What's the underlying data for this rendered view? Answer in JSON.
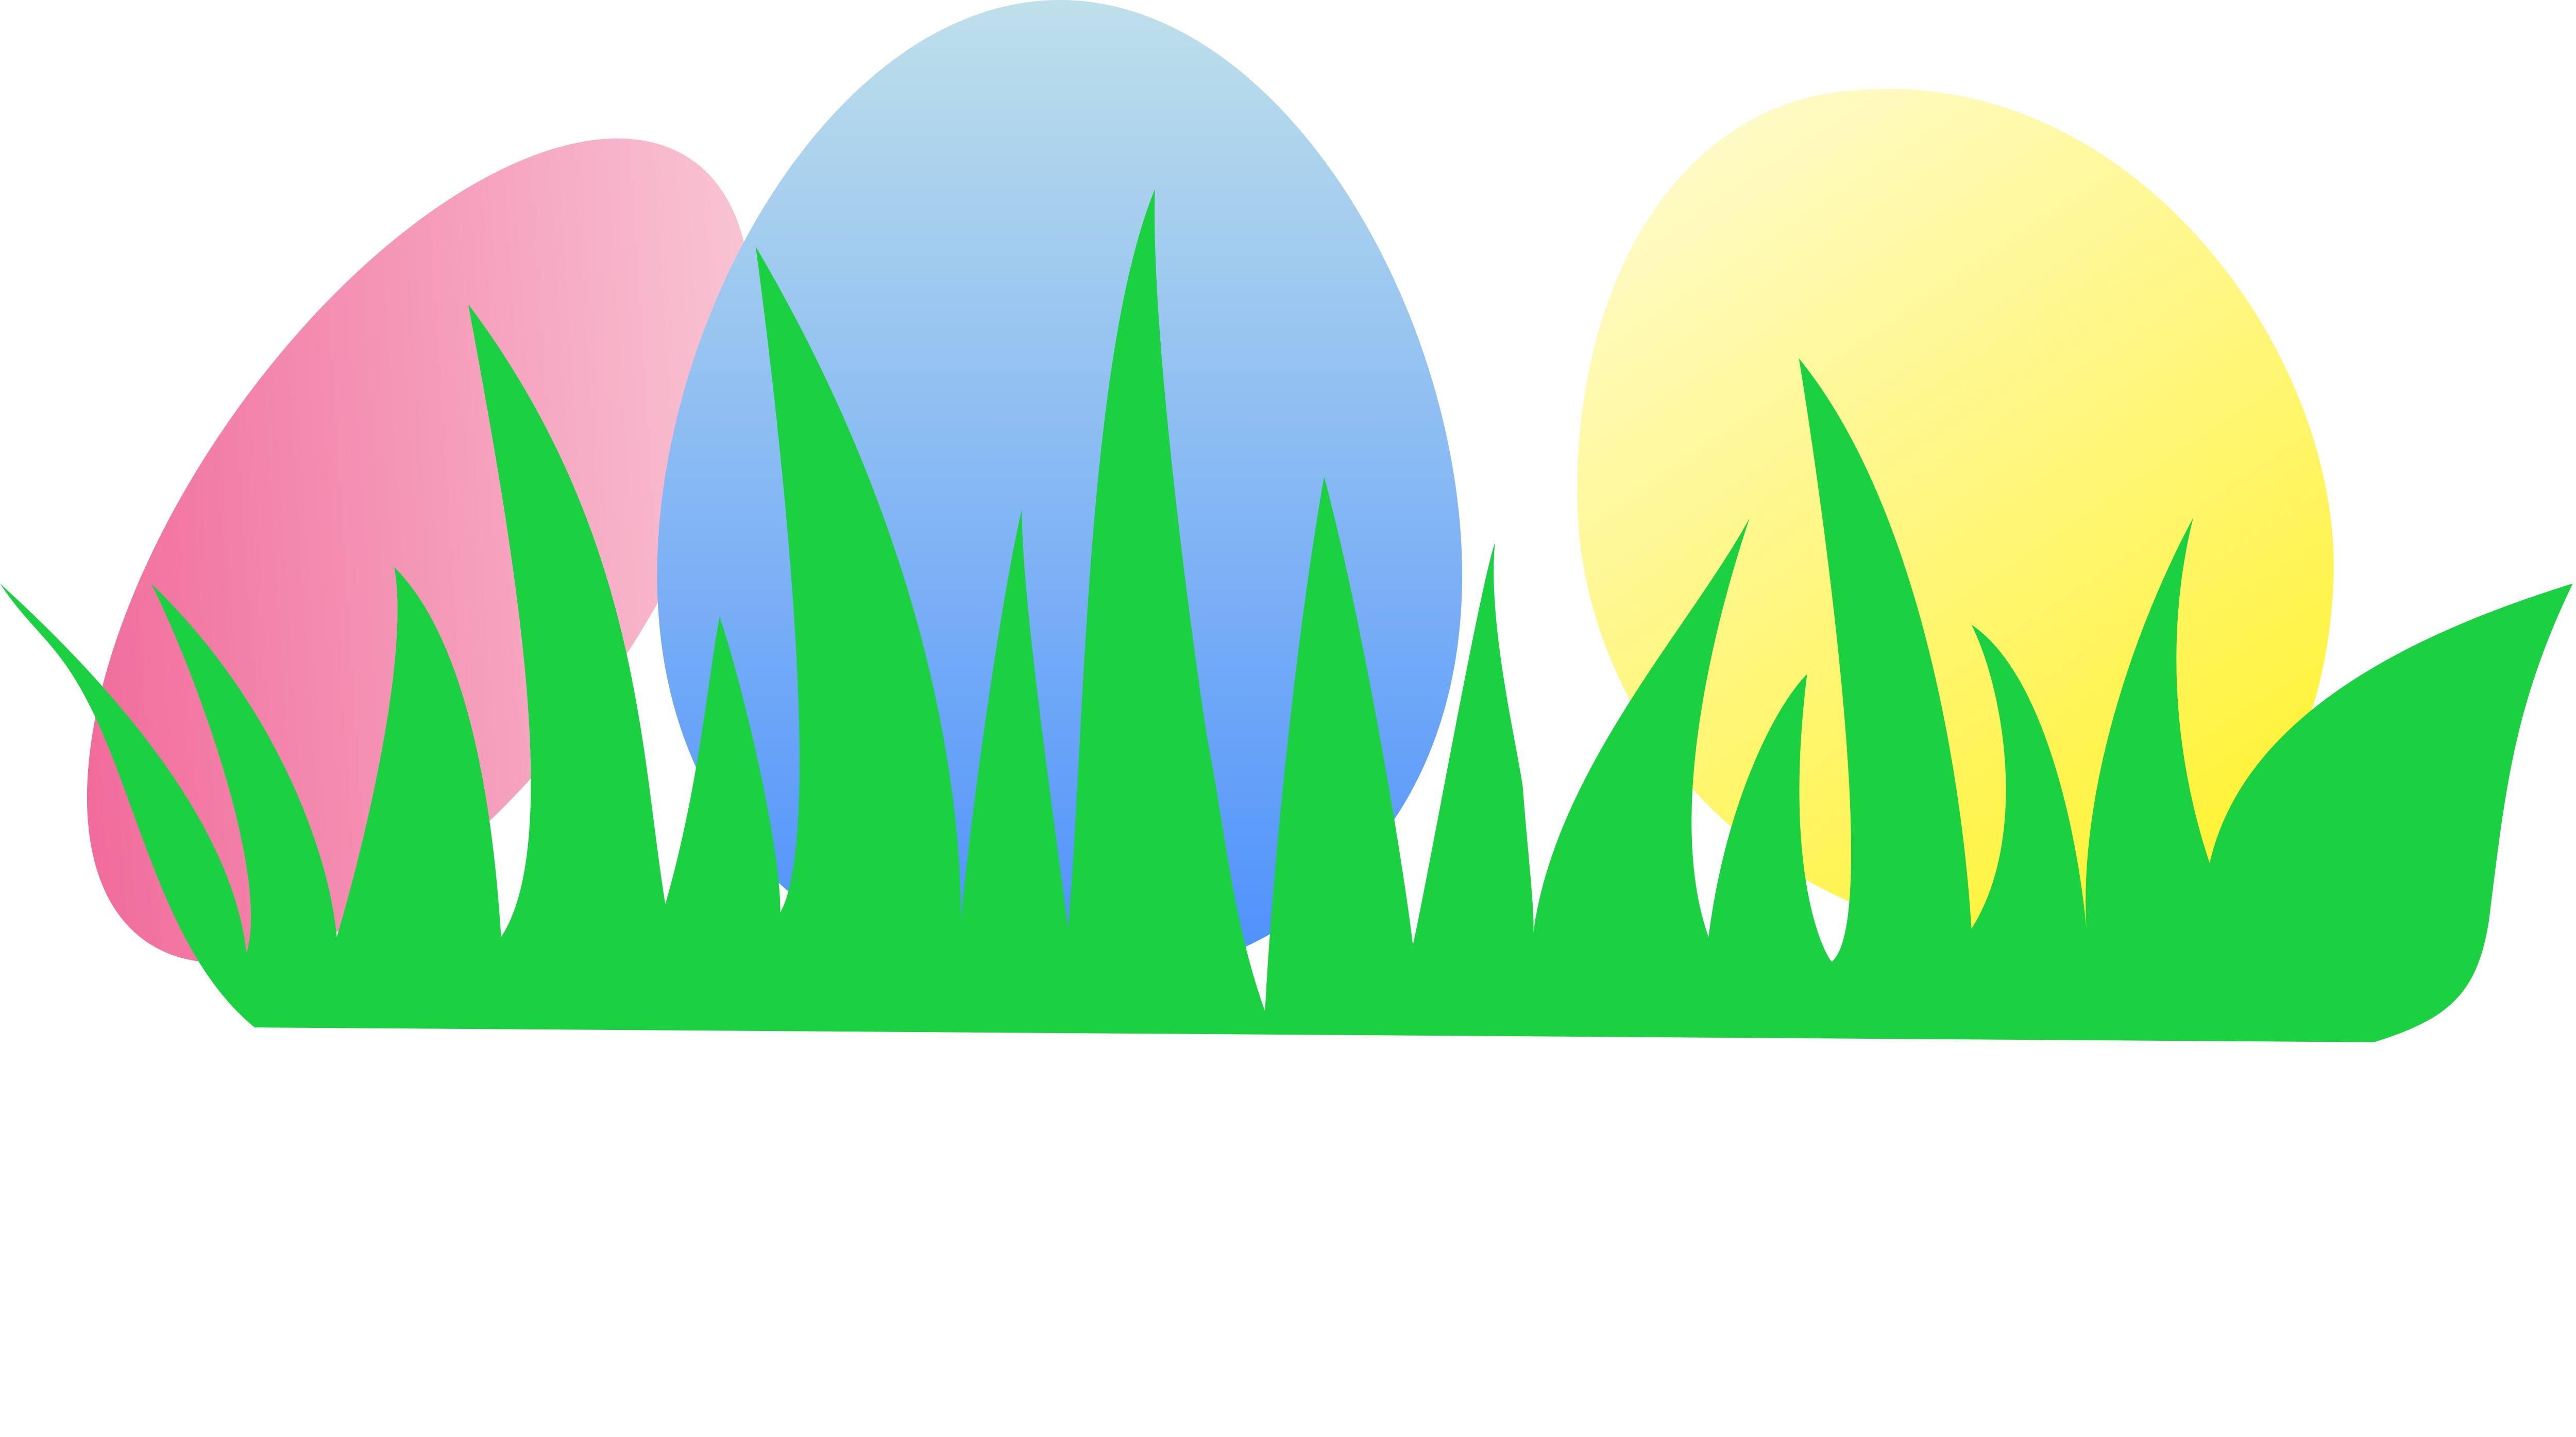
{
  "scene": {
    "subject": "easter-eggs-in-grass",
    "colors": {
      "pink_light": "#f9cbd8",
      "pink_dark": "#f06497",
      "blue_light": "#bfe0ea",
      "blue_dark": "#4b8ffd",
      "yellow_light": "#fffbcb",
      "yellow_dark": "#fff22e",
      "grass": "#1bd142"
    },
    "eggs": [
      {
        "color": "pink"
      },
      {
        "color": "blue"
      },
      {
        "color": "yellow"
      }
    ]
  }
}
